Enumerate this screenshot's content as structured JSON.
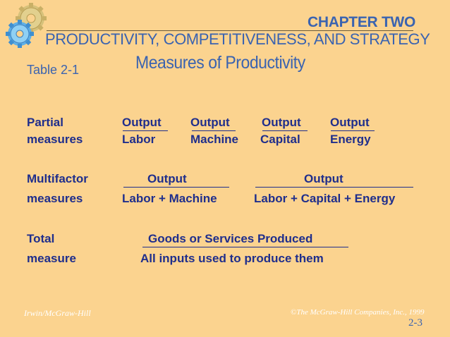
{
  "header": {
    "chapter": "CHAPTER TWO",
    "subtitle": "PRODUCTIVITY, COMPETITIVENESS, AND STRATEGY",
    "title": "Measures of Productivity",
    "table_label": "Table 2-1"
  },
  "partial": {
    "label_line1": "Partial",
    "label_line2": "measures",
    "ratios": [
      {
        "numerator": "Output",
        "denominator": "Labor"
      },
      {
        "numerator": "Output",
        "denominator": "Machine"
      },
      {
        "numerator": "Output",
        "denominator": "Capital"
      },
      {
        "numerator": "Output",
        "denominator": "Energy"
      }
    ]
  },
  "multifactor": {
    "label_line1": "Multifactor",
    "label_line2": "measures",
    "ratios": [
      {
        "numerator": "Output",
        "denominator": "Labor + Machine"
      },
      {
        "numerator": "Output",
        "denominator": "Labor + Capital + Energy"
      }
    ]
  },
  "total": {
    "label_line1": "Total",
    "label_line2": "measure",
    "numerator": "Goods or Services Produced",
    "denominator": "All inputs used to produce them"
  },
  "footer": {
    "publisher": "Irwin/McGraw-Hill",
    "copyright": "©The McGraw-Hill Companies, Inc., 1999",
    "page": "2-3"
  },
  "colors": {
    "background": "#fbd38f",
    "heading_blue": "#3a63b0",
    "body_navy": "#1f2e8c"
  },
  "icons": [
    "gears-icon"
  ]
}
